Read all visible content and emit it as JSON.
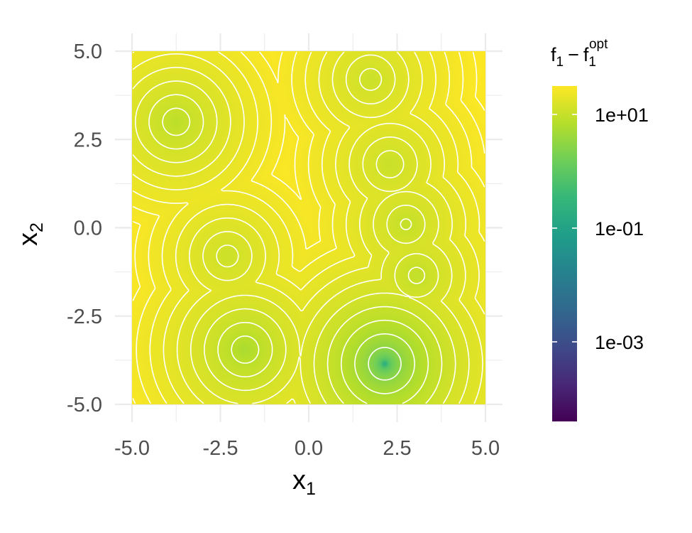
{
  "chart_data": {
    "type": "heatmap",
    "subtype": "contour-filled",
    "colormap": "viridis",
    "color_scale": "log10",
    "xlabel": "x",
    "xlabel_sub": "1",
    "ylabel": "x",
    "ylabel_sub": "2",
    "xlim": [
      -5,
      5
    ],
    "ylim": [
      -5,
      5
    ],
    "x_ticks": [
      -5.0,
      -2.5,
      0.0,
      2.5,
      5.0
    ],
    "x_tick_labels": [
      "-5.0",
      "-2.5",
      "0.0",
      "2.5",
      "5.0"
    ],
    "y_ticks": [
      -5.0,
      -2.5,
      0.0,
      2.5,
      5.0
    ],
    "y_tick_labels": [
      "-5.0",
      "-2.5",
      "0.0",
      "2.5",
      "5.0"
    ],
    "grid": true,
    "legend": {
      "position": "right",
      "title_main": "f",
      "title_sub": "1",
      "title_operator": "−",
      "title_main2": "f",
      "title_sub2": "1",
      "title_sup2": "opt",
      "range_log10": [
        -4.4,
        1.5
      ],
      "ticks": [
        10,
        0.1,
        0.001
      ],
      "tick_labels": [
        "1e+01",
        "1e-01",
        "1e-03"
      ]
    },
    "minima": [
      {
        "x": 2.15,
        "y": -3.85,
        "value": 0.0
      },
      {
        "x": -1.8,
        "y": -3.45,
        "value": 5.5
      },
      {
        "x": -3.75,
        "y": 3.0,
        "value": 8.0
      },
      {
        "x": 3.05,
        "y": -1.35,
        "value": 9.0
      },
      {
        "x": -2.3,
        "y": -0.8,
        "value": 11.0
      },
      {
        "x": 1.75,
        "y": 4.2,
        "value": 11.0
      },
      {
        "x": 2.75,
        "y": 0.1,
        "value": 9.5
      },
      {
        "x": 2.3,
        "y": 1.8,
        "value": 10.5
      }
    ],
    "value_max": 31.6
  }
}
